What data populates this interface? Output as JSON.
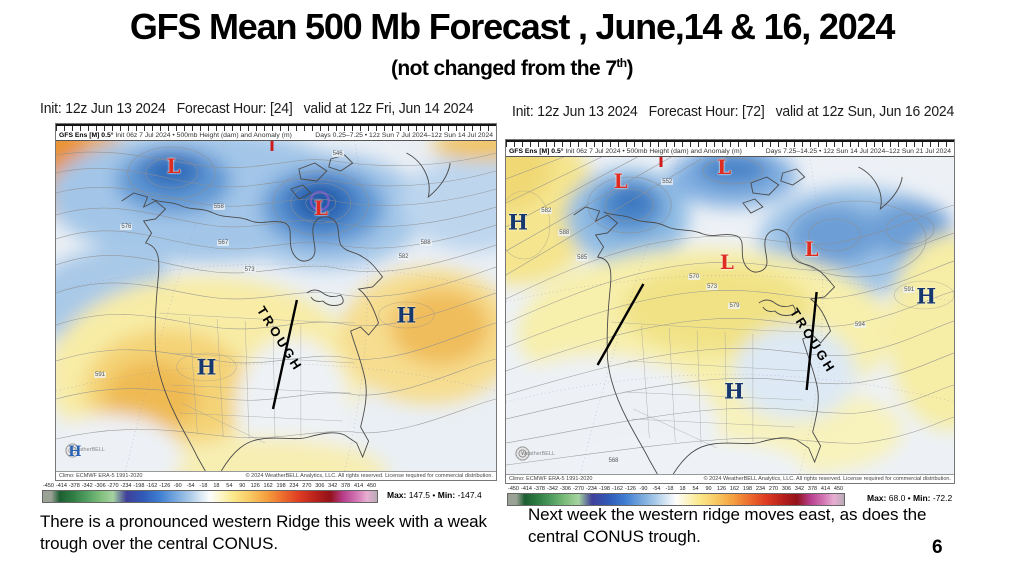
{
  "slide": {
    "title": "GFS Mean 500 Mb Forecast , June,14 & 16, 2024",
    "subtitle": {
      "pre": "(not changed from the 7",
      "sup": "th",
      "post": ")"
    },
    "page_number": "6"
  },
  "colorbar": {
    "ticks": [
      "-450",
      "-414",
      "-378",
      "-342",
      "-306",
      "-270",
      "-234",
      "-198",
      "-162",
      "-126",
      "-90",
      "-54",
      "-18",
      "18",
      "54",
      "90",
      "126",
      "162",
      "198",
      "234",
      "270",
      "306",
      "342",
      "378",
      "414",
      "450"
    ]
  },
  "panels": {
    "left": {
      "header": "Init: 12z Jun 13 2024   Forecast Hour: [24]   valid at 12z Fri, Jun 14 2024",
      "model_label": "GFS Ens [M] 0.5°",
      "model_desc": " Init 06z 7 Jul 2024 • 500mb Height (dam) and Anomaly (m)",
      "days_label": "Days 0.25–7.25 • 12z Sun 7 Jul 2024–12z Sun 14 Jul 2024",
      "climo": "Climo: ECMWF ERA-5 1991-2020",
      "copyright": "© 2024 WeatherBELL Analytics, LLC. All rights reserved. License required for commercial distribution.",
      "logo": "WeatherBELL",
      "max_label": "Max:",
      "max_value": "147.5 •",
      "min_label": "Min:",
      "min_value": "-147.4",
      "trough_label": "TROUGH",
      "caption": "There is a pronounced western Ridge this week with a weak trough over the central CONUS.",
      "markers": [
        {
          "t": "low",
          "label": "L",
          "x": 26.7,
          "y": 7.6
        },
        {
          "t": "low",
          "label": "L",
          "x": 60.2,
          "y": 20.3
        },
        {
          "t": "high",
          "label": "H",
          "x": 34.2,
          "y": 68.5
        },
        {
          "t": "high",
          "label": "H",
          "x": 79.6,
          "y": 52.7
        },
        {
          "t": "high-sm",
          "label": "H",
          "x": 4.3,
          "y": 94.2
        },
        {
          "t": "redtick",
          "label": "",
          "x": 49.0,
          "y": 1.5
        },
        {
          "t": "contour",
          "label": "546",
          "x": 64,
          "y": 4
        },
        {
          "t": "contour",
          "label": "558",
          "x": 37,
          "y": 20
        },
        {
          "t": "contour",
          "label": "567",
          "x": 38,
          "y": 31
        },
        {
          "t": "contour",
          "label": "573",
          "x": 44,
          "y": 39
        },
        {
          "t": "contour",
          "label": "582",
          "x": 79,
          "y": 35
        },
        {
          "t": "contour",
          "label": "588",
          "x": 84,
          "y": 31
        },
        {
          "t": "contour",
          "label": "591",
          "x": 10,
          "y": 71
        },
        {
          "t": "contour",
          "label": "576",
          "x": 16,
          "y": 26
        }
      ]
    },
    "right": {
      "header": "Init: 12z Jun 13 2024   Forecast Hour: [72]   valid at 12z Sun, Jun 16 2024",
      "model_label": "GFS Ens [M] 0.5°",
      "model_desc": " Init 06z 7 Jul 2024 • 500mb Height (dam) and Anomaly (m)",
      "days_label": "Days 7.25–14.25 • 12z Sun 14 Jul 2024–12z Sun 21 Jul 2024",
      "climo": "Climo: ECMWF ERA-5 1991-2020",
      "copyright": "© 2024 WeatherBELL Analytics, LLC. All rights reserved. License required for commercial distribution.",
      "logo": "WeatherBELL",
      "max_label": "Max:",
      "max_value": "68.0 •",
      "min_label": "Min:",
      "min_value": "-72.2",
      "trough_label": "TROUGH",
      "caption": "Next week the western ridge moves east, as does the central  CONUS trough.",
      "markers": [
        {
          "t": "low",
          "label": "L",
          "x": 25.6,
          "y": 7.6
        },
        {
          "t": "low",
          "label": "L",
          "x": 48.7,
          "y": 3.0
        },
        {
          "t": "low",
          "label": "L",
          "x": 49.3,
          "y": 33.1
        },
        {
          "t": "low",
          "label": "L",
          "x": 68.2,
          "y": 29.0
        },
        {
          "t": "high",
          "label": "H",
          "x": 2.7,
          "y": 20.5
        },
        {
          "t": "high",
          "label": "H",
          "x": 93.8,
          "y": 43.8
        },
        {
          "t": "high",
          "label": "H",
          "x": 50.9,
          "y": 73.8
        },
        {
          "t": "redtick",
          "label": "",
          "x": 34.5,
          "y": 1.5
        },
        {
          "t": "contour",
          "label": "582",
          "x": 9,
          "y": 17
        },
        {
          "t": "contour",
          "label": "588",
          "x": 13,
          "y": 24
        },
        {
          "t": "contour",
          "label": "585",
          "x": 17,
          "y": 32
        },
        {
          "t": "contour",
          "label": "552",
          "x": 36,
          "y": 8
        },
        {
          "t": "contour",
          "label": "570",
          "x": 42,
          "y": 38
        },
        {
          "t": "contour",
          "label": "573",
          "x": 46,
          "y": 41
        },
        {
          "t": "contour",
          "label": "579",
          "x": 51,
          "y": 47
        },
        {
          "t": "contour",
          "label": "591",
          "x": 90,
          "y": 42
        },
        {
          "t": "contour",
          "label": "594",
          "x": 79,
          "y": 53
        },
        {
          "t": "contour",
          "label": "568",
          "x": 24,
          "y": 96
        }
      ]
    }
  }
}
